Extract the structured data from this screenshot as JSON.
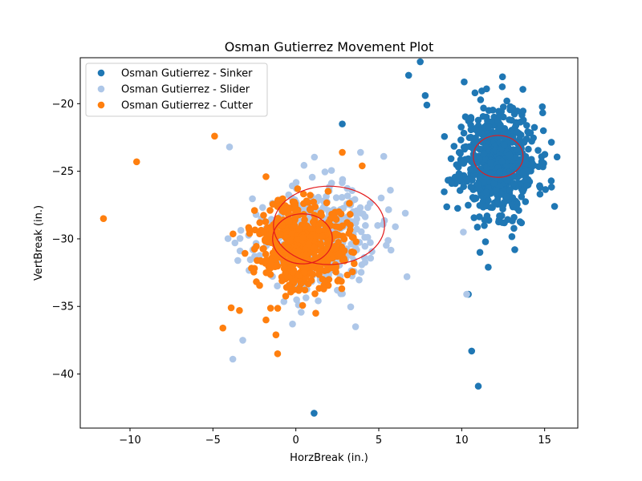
{
  "chart_data": {
    "type": "scatter",
    "title": "Osman Gutierrez Movement Plot",
    "xlabel": "HorzBreak (in.)",
    "ylabel": "VertBreak (in.)",
    "xlim": [
      -13,
      17
    ],
    "ylim": [
      -44,
      -16.6
    ],
    "xticks": [
      -10,
      -5,
      0,
      5,
      10,
      15
    ],
    "yticks": [
      -40,
      -35,
      -30,
      -25,
      -20
    ],
    "grid": false,
    "legend_position": "top-left",
    "series": [
      {
        "name": "Osman Gutierrez - Sinker",
        "color": "#1f77b4",
        "cluster": {
          "cx": 12.2,
          "cy": -24.2,
          "sx": 1.15,
          "sy": 2.0,
          "n": 620,
          "seed": 11
        },
        "outliers": [
          [
            7.5,
            -16.9
          ],
          [
            6.8,
            -17.9
          ],
          [
            7.8,
            -19.4
          ],
          [
            7.9,
            -20.1
          ],
          [
            11.5,
            -18.9
          ],
          [
            10.8,
            -19.2
          ],
          [
            9.4,
            -25.9
          ],
          [
            11.1,
            -31.0
          ],
          [
            11.6,
            -32.1
          ],
          [
            13.2,
            -30.8
          ],
          [
            10.4,
            -34.1
          ],
          [
            11.0,
            -40.9
          ],
          [
            10.6,
            -38.3
          ],
          [
            15.6,
            -27.6
          ],
          [
            14.9,
            -24.4
          ],
          [
            1.1,
            -42.9
          ],
          [
            2.8,
            -21.5
          ]
        ],
        "ellipse": {
          "cx": 12.2,
          "cy": -23.9,
          "rx": 1.5,
          "ry": 1.55,
          "color": "#e31a1c"
        }
      },
      {
        "name": "Osman Gutierrez - Slider",
        "color": "#aec7e8",
        "cluster": {
          "cx": 1.2,
          "cy": -29.8,
          "sx": 1.8,
          "sy": 1.9,
          "n": 360,
          "seed": 23
        },
        "outliers": [
          [
            -4.0,
            -23.2
          ],
          [
            -3.8,
            -38.9
          ],
          [
            -3.2,
            -37.5
          ],
          [
            -3.5,
            -31.6
          ],
          [
            -2.4,
            -28.2
          ],
          [
            3.9,
            -23.6
          ],
          [
            5.3,
            -23.9
          ],
          [
            5.7,
            -26.4
          ],
          [
            6.0,
            -29.1
          ],
          [
            6.7,
            -32.8
          ],
          [
            6.6,
            -28.1
          ],
          [
            3.6,
            -36.5
          ],
          [
            -0.2,
            -36.3
          ],
          [
            2.5,
            -33.8
          ],
          [
            10.3,
            -34.1
          ],
          [
            10.1,
            -29.5
          ]
        ],
        "ellipse": {
          "cx": 2.0,
          "cy": -29.0,
          "rx": 3.35,
          "ry": 2.9,
          "color": "#e31a1c"
        }
      },
      {
        "name": "Osman Gutierrez - Cutter",
        "color": "#ff7f0e",
        "cluster": {
          "cx": 0.4,
          "cy": -30.3,
          "sx": 1.35,
          "sy": 1.65,
          "n": 520,
          "seed": 37
        },
        "outliers": [
          [
            -11.6,
            -28.5
          ],
          [
            -9.6,
            -24.3
          ],
          [
            -4.9,
            -22.4
          ],
          [
            -1.8,
            -25.4
          ],
          [
            2.8,
            -23.6
          ],
          [
            4.0,
            -24.6
          ],
          [
            -4.4,
            -36.6
          ],
          [
            -3.4,
            -35.3
          ],
          [
            -1.1,
            -38.5
          ],
          [
            -1.8,
            -36.0
          ],
          [
            1.2,
            -35.5
          ],
          [
            -1.2,
            -37.1
          ],
          [
            -3.9,
            -35.1
          ]
        ],
        "ellipse": {
          "cx": 0.4,
          "cy": -30.0,
          "rx": 1.8,
          "ry": 1.85,
          "color": "#e31a1c"
        }
      }
    ]
  }
}
